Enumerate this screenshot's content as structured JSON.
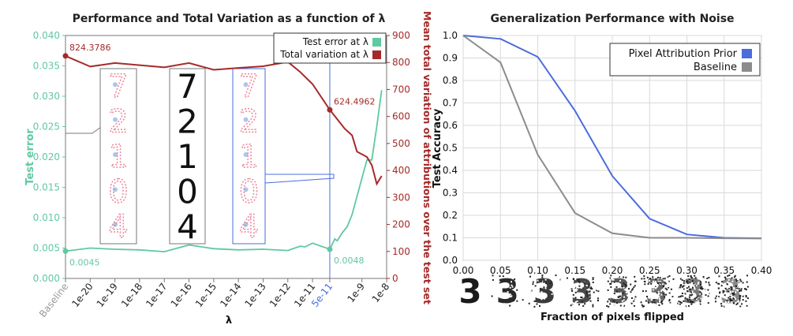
{
  "chart_data": [
    {
      "type": "line",
      "title": "Performance and Total Variation as a function of λ",
      "xlabel": "λ",
      "ylabel_left": "Test error",
      "ylabel_right": "Mean total variation of attributions over the test set",
      "x_ticks": [
        "Baseline",
        "1e-20",
        "1e-19",
        "1e-18",
        "1e-17",
        "1e-16",
        "1e-15",
        "1e-14",
        "1e-13",
        "1e-12",
        "1e-11",
        "5e-11",
        "1e-9",
        "1e-8"
      ],
      "y_left_ticks": [
        "0.000",
        "0.005",
        "0.010",
        "0.015",
        "0.020",
        "0.025",
        "0.030",
        "0.035",
        "0.040"
      ],
      "y_right_ticks": [
        "0",
        "100",
        "200",
        "300",
        "400",
        "500",
        "600",
        "700",
        "800",
        "900"
      ],
      "ylim_left": [
        0,
        0.04
      ],
      "ylim_right": [
        0,
        900
      ],
      "series": [
        {
          "name": "Test error at λ",
          "color": "#5fc9a0",
          "axis": "left",
          "x": [
            "Baseline",
            "1e-20",
            "1e-19",
            "1e-18",
            "1e-17",
            "1e-16",
            "1e-15",
            "1e-14",
            "1e-13",
            "1e-12",
            "1e-11.5",
            "1e-11.3",
            "1e-11",
            "5e-11",
            "1e-10.1",
            "1e-10",
            "1e-9.8",
            "1e-9.6",
            "1e-9.4",
            "1e-9.2",
            "1e-9",
            "1e-8.8",
            "1e-8.6",
            "1e-8.4",
            "1e-8.2"
          ],
          "values": [
            0.0045,
            0.005,
            0.0048,
            0.0047,
            0.0044,
            0.0055,
            0.0049,
            0.0047,
            0.0048,
            0.0046,
            0.0053,
            0.0052,
            0.0058,
            0.0048,
            0.0065,
            0.0062,
            0.0075,
            0.0085,
            0.0105,
            0.0135,
            0.0165,
            0.0195,
            0.0195,
            0.025,
            0.031
          ]
        },
        {
          "name": "Total variation at λ",
          "color": "#a52a2a",
          "axis": "right",
          "x": [
            "Baseline",
            "1e-20",
            "1e-19",
            "1e-18",
            "1e-17",
            "1e-16",
            "1e-15",
            "1e-14",
            "1e-13",
            "1e-12",
            "1e-11.5",
            "1e-11",
            "5e-11",
            "1e-10",
            "1e-9.7",
            "1e-9.4",
            "1e-9.2",
            "1e-9",
            "1e-8.8",
            "1e-8.6",
            "1e-8.4",
            "1e-8.2"
          ],
          "values": [
            824.3786,
            785,
            798,
            790,
            782,
            798,
            773,
            780,
            786,
            802,
            765,
            720,
            624.4962,
            590,
            555,
            530,
            470,
            460,
            450,
            420,
            350,
            380
          ]
        }
      ],
      "annotations": [
        {
          "text": "824.3786",
          "x": "Baseline",
          "y": 824.3786,
          "axis": "right"
        },
        {
          "text": "624.4962",
          "x": "5e-11",
          "y": 624.4962,
          "axis": "right"
        },
        {
          "text": "0.0045",
          "x": "Baseline",
          "y": 0.0045,
          "axis": "left"
        },
        {
          "text": "0.0048",
          "x": "5e-11",
          "y": 0.0048,
          "axis": "left"
        }
      ],
      "legend": "top-right",
      "grid": false
    },
    {
      "type": "line",
      "title": "Generalization Performance with Noise",
      "xlabel": "Fraction of pixels flipped",
      "ylabel": "Test Accuracy",
      "x": [
        0.0,
        0.05,
        0.1,
        0.15,
        0.2,
        0.25,
        0.3,
        0.35,
        0.4
      ],
      "x_ticks": [
        "0.00",
        "0.05",
        "0.10",
        "0.15",
        "0.20",
        "0.25",
        "0.30",
        "0.35",
        "0.40"
      ],
      "y_ticks": [
        "0.0",
        "0.1",
        "0.2",
        "0.3",
        "0.4",
        "0.5",
        "0.6",
        "0.7",
        "0.8",
        "0.9",
        "1.0"
      ],
      "xlim": [
        0,
        0.4
      ],
      "ylim": [
        0,
        1.0
      ],
      "series": [
        {
          "name": "Pixel Attribution Prior",
          "color": "#4a6cdc",
          "values": [
            1.0,
            0.985,
            0.905,
            0.665,
            0.375,
            0.185,
            0.115,
            0.1,
            0.098
          ]
        },
        {
          "name": "Baseline",
          "color": "#8c8c8c",
          "values": [
            1.0,
            0.88,
            0.47,
            0.21,
            0.12,
            0.1,
            0.1,
            0.098,
            0.097
          ]
        }
      ],
      "legend": "top-right",
      "grid": true
    }
  ],
  "digits": {
    "center_panel": [
      "7",
      "2",
      "1",
      "0",
      "4"
    ],
    "left_panel": [
      "7",
      "2",
      "1",
      "0",
      "4"
    ],
    "right_panel": [
      "7",
      "2",
      "1",
      "0",
      "4"
    ],
    "noise_strip": [
      "3",
      "3",
      "3",
      "3",
      "3",
      "3",
      "3",
      "3"
    ]
  }
}
